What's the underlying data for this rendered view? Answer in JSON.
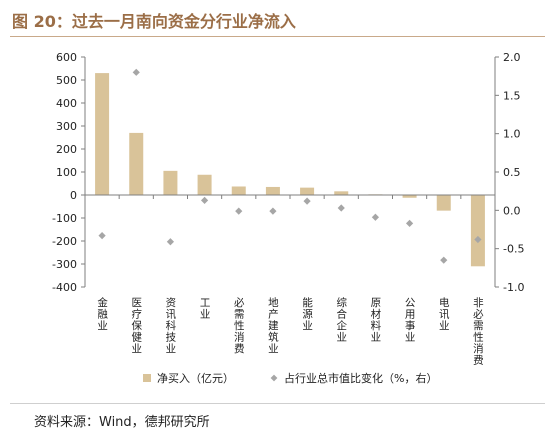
{
  "header": {
    "title": "图 20：过去一月南向资金分行业净流入"
  },
  "footer": {
    "source": "资料来源：Wind，德邦研究所"
  },
  "chart_data": {
    "type": "bar",
    "categories": [
      "金融业",
      "医疗保健业",
      "资讯科技业",
      "工业",
      "必需性消费",
      "地产建筑业",
      "能源业",
      "综合企业",
      "原材料业",
      "公用事业",
      "电讯业",
      "非必需性消费"
    ],
    "series": [
      {
        "name": "净买入（亿元）",
        "type": "bar",
        "axis": "left",
        "values": [
          530,
          270,
          105,
          88,
          37,
          35,
          32,
          16,
          3,
          -12,
          -68,
          -310
        ]
      },
      {
        "name": "占行业总市值比变化（%，右）",
        "type": "scatter",
        "axis": "right",
        "values": [
          -0.33,
          1.8,
          -0.41,
          0.13,
          -0.01,
          -0.01,
          0.12,
          0.03,
          -0.09,
          -0.17,
          -0.65,
          -0.38
        ]
      }
    ],
    "y_left": {
      "min": -400,
      "max": 600,
      "step": 100,
      "ticks": [
        "600",
        "500",
        "400",
        "300",
        "200",
        "100",
        "0",
        "-100",
        "-200",
        "-300",
        "-400"
      ]
    },
    "y_right": {
      "min": -1.0,
      "max": 2.0,
      "step": 0.5,
      "ticks": [
        "2.0",
        "1.5",
        "1.0",
        "0.5",
        "0.0",
        "-0.5",
        "-1.0"
      ]
    },
    "legend_position": "bottom",
    "grid": false,
    "colors": {
      "bar": "#d9c399",
      "marker": "#a6a6a6",
      "axis": "#7f7f7f"
    }
  }
}
